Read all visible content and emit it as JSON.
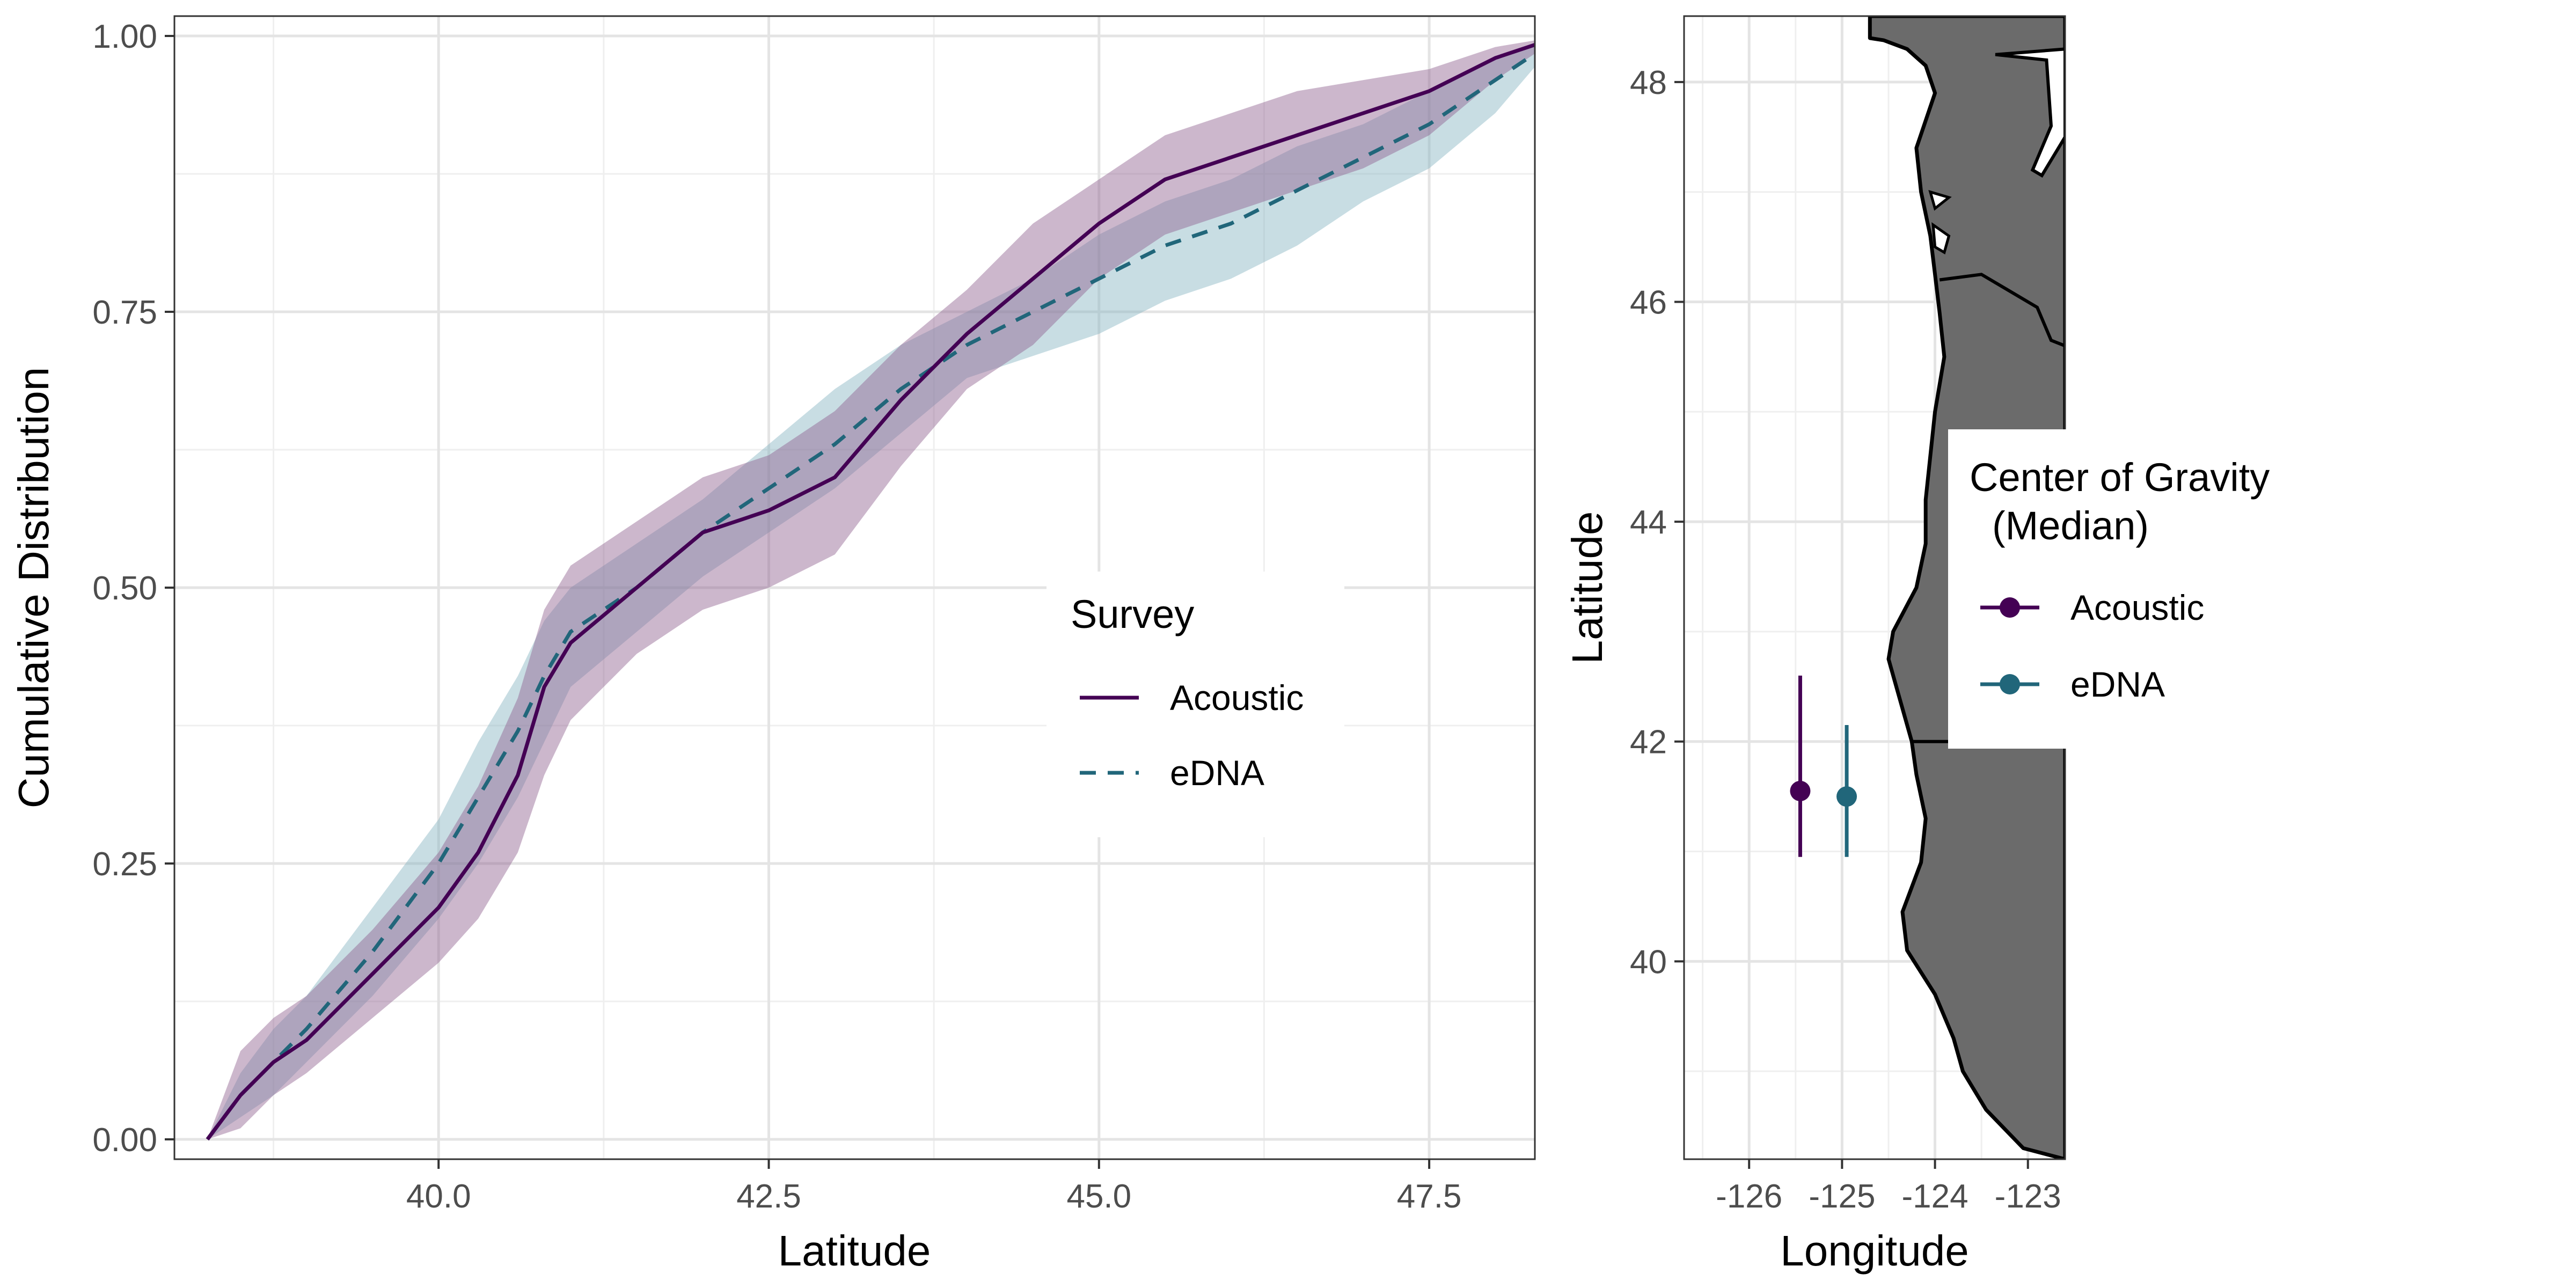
{
  "chart_data": [
    {
      "type": "line",
      "xlabel": "Latitude",
      "ylabel": "Cumulative Distribution",
      "xlim": [
        38.0,
        48.3
      ],
      "ylim": [
        0.0,
        1.0
      ],
      "x_ticks": [
        40.0,
        42.5,
        45.0,
        47.5
      ],
      "x_tick_labels": [
        "40.0",
        "42.5",
        "45.0",
        "47.5"
      ],
      "y_ticks": [
        0.0,
        0.25,
        0.5,
        0.75,
        1.0
      ],
      "y_tick_labels": [
        "0.00",
        "0.25",
        "0.50",
        "0.75",
        "1.00"
      ],
      "grid": true,
      "legend": {
        "title": "Survey",
        "position": "inside-right",
        "entries": [
          {
            "label": "Acoustic",
            "color": "#440154",
            "linetype": "solid"
          },
          {
            "label": "eDNA",
            "color": "#21667a",
            "linetype": "dashed"
          }
        ]
      },
      "series": [
        {
          "name": "Acoustic",
          "color": "#440154",
          "fill": "#8e5f8f",
          "linetype": "solid",
          "x": [
            38.25,
            38.5,
            38.75,
            39.0,
            39.5,
            40.0,
            40.3,
            40.6,
            40.8,
            41.0,
            41.5,
            42.0,
            42.5,
            43.0,
            43.5,
            44.0,
            44.5,
            45.0,
            45.5,
            46.0,
            46.5,
            47.0,
            47.5,
            48.0,
            48.5
          ],
          "y": [
            0.0,
            0.04,
            0.07,
            0.09,
            0.15,
            0.21,
            0.26,
            0.33,
            0.41,
            0.45,
            0.5,
            0.55,
            0.57,
            0.6,
            0.67,
            0.73,
            0.78,
            0.83,
            0.87,
            0.89,
            0.91,
            0.93,
            0.95,
            0.98,
            1.0
          ],
          "lower": [
            0.0,
            0.01,
            0.04,
            0.06,
            0.11,
            0.16,
            0.2,
            0.26,
            0.33,
            0.38,
            0.44,
            0.48,
            0.5,
            0.53,
            0.61,
            0.68,
            0.72,
            0.78,
            0.82,
            0.84,
            0.86,
            0.88,
            0.91,
            0.96,
            1.0
          ],
          "upper": [
            0.0,
            0.08,
            0.11,
            0.13,
            0.19,
            0.26,
            0.32,
            0.4,
            0.48,
            0.52,
            0.56,
            0.6,
            0.62,
            0.66,
            0.72,
            0.77,
            0.83,
            0.87,
            0.91,
            0.93,
            0.95,
            0.96,
            0.97,
            0.99,
            1.0
          ]
        },
        {
          "name": "eDNA",
          "color": "#21667a",
          "fill": "#86b3c0",
          "linetype": "dashed",
          "x": [
            38.25,
            38.5,
            38.75,
            39.0,
            39.5,
            40.0,
            40.3,
            40.6,
            40.8,
            41.0,
            41.5,
            42.0,
            42.5,
            43.0,
            43.5,
            44.0,
            44.5,
            45.0,
            45.5,
            46.0,
            46.5,
            47.0,
            47.5,
            48.0,
            48.5
          ],
          "y": [
            0.0,
            0.04,
            0.07,
            0.1,
            0.17,
            0.25,
            0.31,
            0.37,
            0.42,
            0.46,
            0.5,
            0.55,
            0.59,
            0.63,
            0.68,
            0.72,
            0.75,
            0.78,
            0.81,
            0.83,
            0.86,
            0.89,
            0.92,
            0.96,
            1.0
          ],
          "lower": [
            0.0,
            0.02,
            0.04,
            0.07,
            0.13,
            0.2,
            0.25,
            0.31,
            0.36,
            0.41,
            0.46,
            0.51,
            0.55,
            0.59,
            0.64,
            0.69,
            0.71,
            0.73,
            0.76,
            0.78,
            0.81,
            0.85,
            0.88,
            0.93,
            1.0
          ],
          "upper": [
            0.0,
            0.06,
            0.1,
            0.13,
            0.21,
            0.29,
            0.36,
            0.42,
            0.47,
            0.5,
            0.54,
            0.58,
            0.63,
            0.68,
            0.72,
            0.75,
            0.78,
            0.82,
            0.85,
            0.87,
            0.9,
            0.92,
            0.95,
            0.98,
            1.0
          ]
        }
      ]
    },
    {
      "type": "scatter",
      "xlabel": "Longitude",
      "ylabel": "Latitude",
      "xlim": [
        -126.7,
        -122.6
      ],
      "ylim": [
        38.2,
        48.6
      ],
      "x_ticks": [
        -126,
        -125,
        -124,
        -123
      ],
      "x_tick_labels": [
        "-126",
        "-125",
        "-124",
        "-123"
      ],
      "y_ticks": [
        40,
        42,
        44,
        46,
        48
      ],
      "y_tick_labels": [
        "40",
        "42",
        "44",
        "46",
        "48"
      ],
      "grid": true,
      "land_color": "#6b6b6b",
      "legend": {
        "title_line1": "Center of Gravity",
        "title_line2": "(Median)",
        "position": "right",
        "entries": [
          {
            "label": "Acoustic",
            "color": "#440154"
          },
          {
            "label": "eDNA",
            "color": "#21667a"
          }
        ]
      },
      "points": [
        {
          "name": "Acoustic",
          "color": "#440154",
          "lon": -125.45,
          "lat": 41.55,
          "lat_low": 40.95,
          "lat_high": 42.6
        },
        {
          "name": "eDNA",
          "color": "#21667a",
          "lon": -124.95,
          "lat": 41.5,
          "lat_low": 40.95,
          "lat_high": 42.15
        }
      ]
    }
  ]
}
